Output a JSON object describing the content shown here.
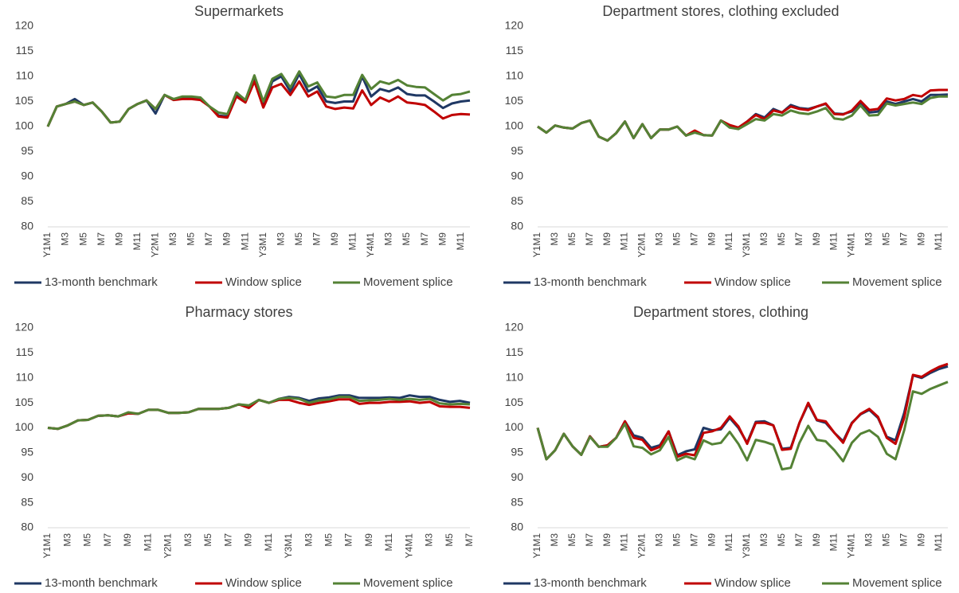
{
  "chart_data": [
    {
      "type": "line",
      "title": "Supermarkets",
      "categories": [
        "Y1M1",
        null,
        "M3",
        null,
        "M5",
        null,
        "M7",
        null,
        "M9",
        null,
        "M11",
        null,
        "Y2M1",
        null,
        "M3",
        null,
        "M5",
        null,
        "M7",
        null,
        "M9",
        null,
        "M11",
        null,
        "Y3M1",
        null,
        "M3",
        null,
        "M5",
        null,
        "M7",
        null,
        "M9",
        null,
        "M11",
        null,
        "Y4M1",
        null,
        "M3",
        null,
        "M5",
        null,
        "M7",
        null,
        "M9",
        null,
        "M11",
        null
      ],
      "series": [
        {
          "name": "13-month benchmark",
          "color": "#1f3864",
          "values": [
            100,
            104,
            104.5,
            105.5,
            104.3,
            104.8,
            103,
            100.8,
            101,
            103.5,
            104.5,
            105.2,
            102.6,
            106.3,
            105.3,
            105.8,
            105.8,
            105.5,
            104,
            102.2,
            102,
            106.5,
            105,
            110,
            104,
            109,
            110,
            107,
            110.5,
            107,
            108,
            105,
            104.7,
            105,
            105,
            110,
            106,
            107.5,
            107,
            107.8,
            106.5,
            106.2,
            106.2,
            105,
            103.7,
            104.6,
            105,
            105.2
          ]
        },
        {
          "name": "Window splice",
          "color": "#c00000",
          "values": [
            100,
            104,
            104.5,
            105,
            104.3,
            104.8,
            103,
            100.8,
            101,
            103.5,
            104.5,
            105.2,
            103.5,
            106.3,
            105.3,
            105.5,
            105.5,
            105.3,
            104,
            102,
            101.8,
            106,
            104.8,
            109,
            103.8,
            107.8,
            108.5,
            106.3,
            109,
            106,
            107,
            104,
            103.5,
            103.8,
            103.6,
            107.2,
            104.3,
            105.8,
            105,
            106,
            104.8,
            104.6,
            104.3,
            103,
            101.6,
            102.3,
            102.5,
            102.4
          ]
        },
        {
          "name": "Movement splice",
          "color": "#548235",
          "values": [
            100,
            104,
            104.5,
            105,
            104.3,
            104.8,
            103,
            100.8,
            101,
            103.5,
            104.5,
            105.2,
            103.5,
            106.3,
            105.5,
            106,
            106,
            105.8,
            104,
            102.8,
            102.5,
            106.8,
            105.3,
            110.2,
            105,
            109.5,
            110.5,
            107.8,
            111,
            108,
            108.8,
            106,
            105.8,
            106.3,
            106.3,
            110.3,
            107.5,
            109,
            108.5,
            109.3,
            108.2,
            107.9,
            107.8,
            106.5,
            105.2,
            106.3,
            106.5,
            107
          ]
        }
      ],
      "ylim": [
        80,
        120
      ],
      "yticks": [
        80,
        85,
        90,
        95,
        100,
        105,
        110,
        115,
        120
      ],
      "grid": false,
      "legend": "bottom"
    },
    {
      "type": "line",
      "title": "Department stores, clothing excluded",
      "categories": [
        "Y1M1",
        null,
        "M3",
        null,
        "M5",
        null,
        "M7",
        null,
        "M9",
        null,
        "M11",
        null,
        "Y2M1",
        null,
        "M3",
        null,
        "M5",
        null,
        "M7",
        null,
        "M9",
        null,
        "M11",
        null,
        "Y3M1",
        null,
        "M3",
        null,
        "M5",
        null,
        "M7",
        null,
        "M9",
        null,
        "M11",
        null,
        "Y4M1",
        null,
        "M3",
        null,
        "M5",
        null,
        "M7",
        null,
        "M9",
        null,
        "M11",
        null
      ],
      "series": [
        {
          "name": "13-month benchmark",
          "color": "#1f3864",
          "values": [
            100,
            98.8,
            100.2,
            99.8,
            99.6,
            100.7,
            101.2,
            98,
            97.2,
            98.7,
            101,
            97.7,
            100.5,
            97.7,
            99.4,
            99.4,
            100,
            98.2,
            99,
            98.3,
            98.2,
            101.2,
            100.2,
            99.8,
            101,
            102.5,
            101.8,
            103.5,
            102.8,
            104.3,
            103.7,
            103.5,
            104,
            104.5,
            102.6,
            102.5,
            103,
            104.8,
            102.8,
            103,
            105,
            104.5,
            105,
            105.5,
            105,
            106.3,
            106.3,
            106.4
          ]
        },
        {
          "name": "Window splice",
          "color": "#c00000",
          "values": [
            100,
            98.8,
            100.2,
            99.8,
            99.6,
            100.7,
            101.2,
            98,
            97.2,
            98.7,
            101,
            97.7,
            100.5,
            97.7,
            99.4,
            99.4,
            100,
            98.2,
            99.2,
            98.3,
            98.2,
            101.2,
            100.3,
            99.8,
            101,
            102.3,
            101.5,
            103.2,
            102.8,
            104,
            103.5,
            103.3,
            104,
            104.6,
            102.5,
            102.4,
            103.2,
            105.1,
            103.3,
            103.5,
            105.6,
            105.2,
            105.5,
            106.3,
            106,
            107.2,
            107.3,
            107.3
          ]
        },
        {
          "name": "Movement splice",
          "color": "#548235",
          "values": [
            100,
            98.8,
            100.2,
            99.8,
            99.6,
            100.7,
            101.2,
            98,
            97.2,
            98.7,
            101,
            97.7,
            100.5,
            97.7,
            99.4,
            99.4,
            100,
            98.2,
            98.8,
            98.3,
            98.2,
            101.2,
            99.8,
            99.5,
            100.5,
            101.5,
            101.2,
            102.5,
            102.2,
            103.2,
            102.7,
            102.5,
            103,
            103.7,
            101.6,
            101.4,
            102.2,
            104.2,
            102.2,
            102.3,
            104.6,
            104.2,
            104.5,
            104.8,
            104.5,
            105.7,
            106,
            106
          ]
        }
      ],
      "ylim": [
        80,
        120
      ],
      "yticks": [
        80,
        85,
        90,
        95,
        100,
        105,
        110,
        115,
        120
      ],
      "grid": false,
      "legend": "bottom"
    },
    {
      "type": "line",
      "title": "Pharmacy stores",
      "categories": [
        "Y1M1",
        null,
        "M3",
        null,
        "M5",
        null,
        "M7",
        null,
        "M9",
        null,
        "M11",
        null,
        "Y2M1",
        null,
        "M3",
        null,
        "M5",
        null,
        "M7",
        null,
        "M9",
        null,
        "M11",
        null,
        "Y3M1",
        null,
        "M3",
        null,
        "M5",
        null,
        "M7",
        null,
        "M9",
        null,
        "M11",
        null,
        "Y4M1",
        null,
        "M3",
        null,
        "M5",
        null,
        "M7"
      ],
      "series": [
        {
          "name": "13-month benchmark",
          "color": "#1f3864",
          "values": [
            100,
            99.8,
            100.5,
            101.5,
            101.6,
            102.4,
            102.5,
            102.3,
            102.9,
            102.8,
            103.6,
            103.6,
            103,
            103,
            103.1,
            103.8,
            103.8,
            103.8,
            104,
            104.7,
            104.4,
            105.6,
            105,
            105.8,
            106.2,
            106,
            105.4,
            105.9,
            106.1,
            106.5,
            106.5,
            106,
            106,
            106,
            106.1,
            106,
            106.5,
            106.2,
            106.2,
            105.6,
            105.2,
            105.4,
            105
          ]
        },
        {
          "name": "Window splice",
          "color": "#c00000",
          "values": [
            100,
            99.8,
            100.5,
            101.5,
            101.6,
            102.4,
            102.5,
            102.3,
            102.9,
            102.8,
            103.6,
            103.6,
            103,
            103,
            103.1,
            103.8,
            103.8,
            103.8,
            104,
            104.7,
            104,
            105.6,
            105,
            105.6,
            105.6,
            105,
            104.6,
            105,
            105.3,
            105.7,
            105.7,
            104.8,
            105,
            105,
            105.2,
            105.2,
            105.3,
            105,
            105.2,
            104.3,
            104.2,
            104.2,
            104
          ]
        },
        {
          "name": "Movement splice",
          "color": "#548235",
          "values": [
            100,
            99.8,
            100.5,
            101.5,
            101.6,
            102.4,
            102.5,
            102.3,
            103.1,
            102.8,
            103.6,
            103.6,
            103,
            103,
            103.1,
            103.8,
            103.8,
            103.8,
            104,
            104.7,
            104.5,
            105.6,
            105,
            105.8,
            106,
            105.8,
            105,
            105.5,
            105.7,
            106.2,
            106.2,
            105.4,
            105.5,
            105.6,
            105.8,
            105.6,
            105.8,
            105.6,
            105.8,
            104.9,
            104.7,
            104.8,
            104.7
          ]
        }
      ],
      "ylim": [
        80,
        120
      ],
      "yticks": [
        80,
        85,
        90,
        95,
        100,
        105,
        110,
        115,
        120
      ],
      "grid": false,
      "legend": "bottom"
    },
    {
      "type": "line",
      "title": "Department stores, clothing",
      "categories": [
        "Y1M1",
        null,
        "M3",
        null,
        "M5",
        null,
        "M7",
        null,
        "M9",
        null,
        "M11",
        null,
        "Y2M1",
        null,
        "M3",
        null,
        "M5",
        null,
        "M7",
        null,
        "M9",
        null,
        "M11",
        null,
        "Y3M1",
        null,
        "M3",
        null,
        "M5",
        null,
        "M7",
        null,
        "M9",
        null,
        "M11",
        null,
        "Y4M1",
        null,
        "M3",
        null,
        "M5",
        null,
        "M7",
        null,
        "M9",
        null,
        "M11",
        null
      ],
      "series": [
        {
          "name": "13-month benchmark",
          "color": "#1f3864",
          "values": [
            100,
            93.7,
            95.5,
            98.8,
            96.3,
            94.6,
            98.3,
            96.2,
            96.5,
            98,
            101.3,
            98.5,
            98,
            96,
            96.5,
            99.3,
            94.5,
            95.3,
            95.7,
            100,
            99.5,
            99.7,
            102,
            100,
            97,
            101.2,
            101.3,
            100.5,
            95.8,
            96,
            101,
            104.8,
            101.5,
            101,
            99,
            97.3,
            101,
            102.7,
            103.6,
            102,
            98.2,
            97.5,
            103,
            110.5,
            110,
            111,
            111.8,
            112.3
          ]
        },
        {
          "name": "Window splice",
          "color": "#c00000",
          "values": [
            100,
            93.7,
            95.5,
            98.8,
            96.3,
            94.6,
            98.3,
            96.2,
            96.5,
            98,
            101.3,
            98,
            97.6,
            95.5,
            96.2,
            99.3,
            94.2,
            94.8,
            94.5,
            99,
            99.3,
            100,
            102.3,
            100.3,
            96.8,
            101,
            101,
            100.5,
            95.6,
            95.8,
            101,
            105,
            101.6,
            101.3,
            99,
            97,
            100.9,
            102.8,
            103.8,
            102.2,
            98,
            96.8,
            102,
            110.6,
            110.2,
            111.3,
            112.2,
            112.8
          ]
        },
        {
          "name": "Movement splice",
          "color": "#548235",
          "values": [
            100,
            93.7,
            95.5,
            98.8,
            96.3,
            94.6,
            98.2,
            96.2,
            96.2,
            98,
            100.8,
            96.3,
            96,
            94.7,
            95.5,
            98.2,
            93.5,
            94.3,
            93.7,
            97.5,
            96.7,
            97,
            99.2,
            96.8,
            93.5,
            97.6,
            97.2,
            96.6,
            91.7,
            92,
            97,
            100.4,
            97.6,
            97.3,
            95.5,
            93.3,
            97,
            98.8,
            99.5,
            98.2,
            94.8,
            93.7,
            99.5,
            107.3,
            106.8,
            107.8,
            108.5,
            109.2
          ]
        }
      ],
      "ylim": [
        80,
        120
      ],
      "yticks": [
        80,
        85,
        90,
        95,
        100,
        105,
        110,
        115,
        120
      ],
      "grid": false,
      "legend": "bottom"
    }
  ]
}
